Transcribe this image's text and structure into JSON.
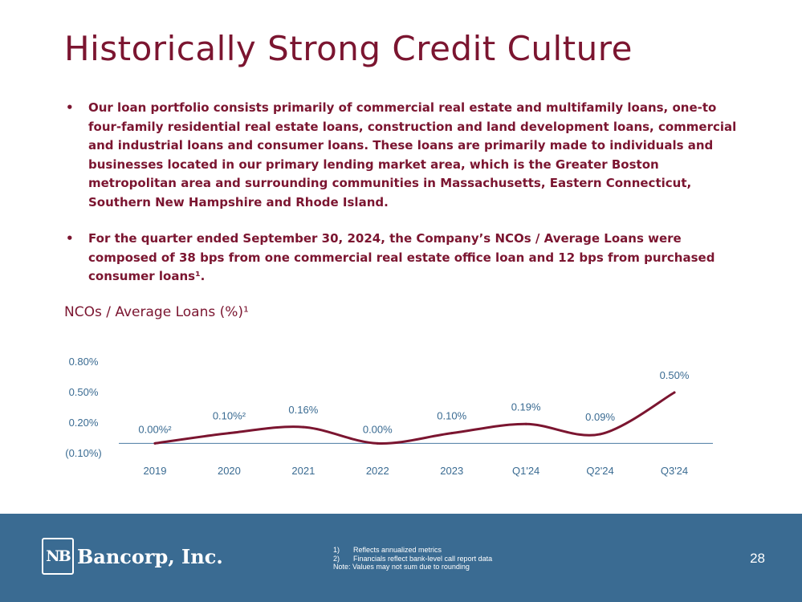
{
  "title": "Historically Strong Credit Culture",
  "bullets": [
    "Our loan portfolio consists primarily of commercial real estate and multifamily loans, one-to four-family residential real estate loans, construction and land development loans, commercial and industrial loans and consumer loans. These loans are primarily made to individuals and businesses located in our primary lending market area, which is the Greater Boston metropolitan area and surrounding communities in Massachusetts, Eastern Connecticut, Southern New Hampshire and Rhode Island.",
    "For the quarter ended September 30, 2024, the Company’s NCOs / Average Loans were composed of 38 bps from one commercial real estate office loan and 12 bps from purchased consumer loans¹."
  ],
  "chart_title": "NCOs / Average Loans (%)¹",
  "chart_data": {
    "type": "line",
    "categories": [
      "2019",
      "2020",
      "2021",
      "2022",
      "2023",
      "Q1'24",
      "Q2'24",
      "Q3'24"
    ],
    "values": [
      0.0,
      0.1,
      0.16,
      0.0,
      0.1,
      0.19,
      0.09,
      0.5
    ],
    "data_labels": [
      "0.00%²",
      "0.10%²",
      "0.16%",
      "0.00%",
      "0.10%",
      "0.19%",
      "0.09%",
      "0.50%"
    ],
    "y_ticks": [
      0.8,
      0.5,
      0.2,
      -0.1
    ],
    "y_tick_labels": [
      "0.80%",
      "0.50%",
      "0.20%",
      "(0.10%)"
    ],
    "ylim": [
      -0.1,
      0.8
    ],
    "baseline": 0.0,
    "title": "NCOs / Average Loans (%)¹",
    "xlabel": "",
    "ylabel": "",
    "grid": false,
    "legend": "none"
  },
  "colors": {
    "accent": "#7b1530",
    "line": "#7b1530",
    "axis_text": "#3a6b92",
    "baseline": "#4a7aa3",
    "footer_bg": "#3a6b92"
  },
  "footer": {
    "logo_mark": "NB",
    "logo_text": "Bancorp, Inc.",
    "footnotes": [
      {
        "num": "1)",
        "text": "Reflects annualized metrics"
      },
      {
        "num": "2)",
        "text": "Financials reflect bank-level call report data"
      }
    ],
    "note": "Note: Values may not sum due to rounding",
    "page_number": "28"
  }
}
